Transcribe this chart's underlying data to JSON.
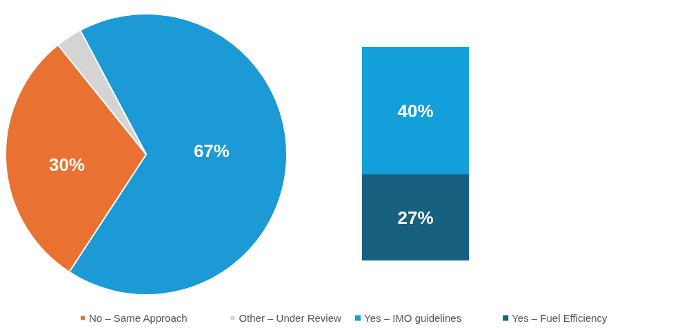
{
  "chart_data": [
    {
      "type": "pie",
      "categories": [
        null,
        "No – Same Approach",
        "Other – Under Review"
      ],
      "values": [
        67,
        30,
        3
      ],
      "colors": [
        "#1b9ad6",
        "#e97132",
        "#d4d4d4"
      ],
      "value_labels": [
        "67%",
        "30%",
        null
      ],
      "legend": "bottom"
    },
    {
      "type": "bar",
      "stacked": true,
      "categories": [
        null
      ],
      "series": [
        {
          "name": "Yes – Fuel Efficiency",
          "color": "#17607f",
          "values": [
            27
          ],
          "value_labels": [
            "27%"
          ]
        },
        {
          "name": "Yes – IMO guidelines",
          "color": "#139fd9",
          "values": [
            40
          ],
          "value_labels": [
            "40%"
          ]
        }
      ],
      "legend": "bottom"
    }
  ]
}
